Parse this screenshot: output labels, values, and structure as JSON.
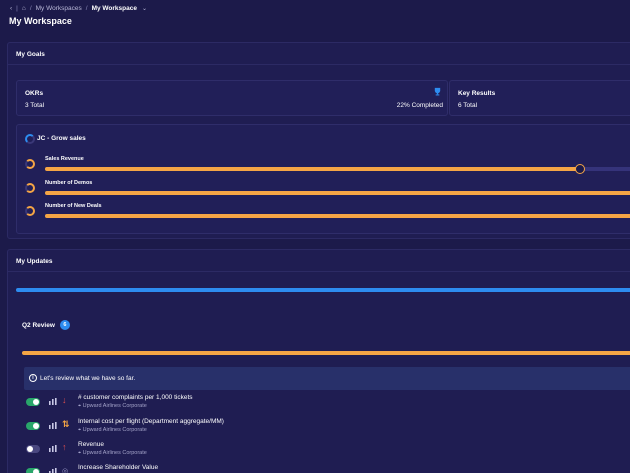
{
  "breadcrumb": {
    "items": [
      "My Workspaces",
      "My Workspace"
    ],
    "separator": "/"
  },
  "page": {
    "title": "My Workspace"
  },
  "goals": {
    "heading": "My Goals",
    "okr_card": {
      "title": "OKRs",
      "total": "3 Total",
      "completed": "22% Completed"
    },
    "kr_card": {
      "title": "Key Results",
      "total": "6 Total"
    },
    "objective": {
      "title": "JC - Grow sales",
      "key_results": [
        {
          "label": "Sales Revenue",
          "progress": 0.9
        },
        {
          "label": "Number of Demos",
          "progress": 1.0
        },
        {
          "label": "Number of New Deals",
          "progress": 1.0
        }
      ]
    }
  },
  "updates": {
    "heading": "My Updates",
    "review": {
      "title": "Q2 Review",
      "count": "6"
    },
    "info_text": "Let's review what we have so far.",
    "items": [
      {
        "title": "# customer complaints per 1,000 tickets",
        "org": "Upward Airlines Corporate",
        "enabled": true,
        "trend": "down"
      },
      {
        "title": "Internal cost per flight (Department aggregate/MM)",
        "org": "Upward Airlines Corporate",
        "enabled": true,
        "trend": "updown"
      },
      {
        "title": "Revenue",
        "org": "Upward Airlines Corporate",
        "enabled": false,
        "trend": "up"
      },
      {
        "title": "Increase Shareholder Value",
        "org": "",
        "enabled": true,
        "trend": "target"
      }
    ]
  },
  "colors": {
    "background": "#1c1a4a",
    "accent_orange": "#f5a545",
    "accent_blue": "#2d8cf0",
    "toggle_on": "#29a66a"
  }
}
